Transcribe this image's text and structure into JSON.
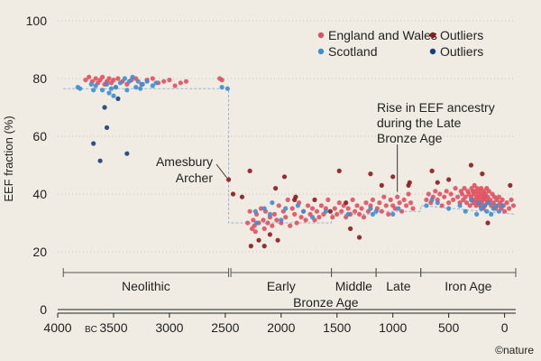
{
  "chart_data": {
    "type": "scatter",
    "ylabel": "EEF fraction (%)",
    "yticks": [
      0,
      20,
      40,
      60,
      80,
      100
    ],
    "ylim": [
      0,
      100
    ],
    "xlim": [
      4000,
      -100
    ],
    "xtick_values": [
      4000,
      3500,
      3000,
      2500,
      2000,
      1500,
      1000,
      500,
      0
    ],
    "xtick_labels": [
      "4000",
      "3500",
      "3000",
      "2500",
      "2000",
      "1500",
      "1000",
      "500",
      "0"
    ],
    "x_unit_label": "BC",
    "legend": [
      {
        "label": "England and Wales",
        "color": "#e0505f"
      },
      {
        "label": "Outliers",
        "color": "#8b1a1a"
      },
      {
        "label": "Scotland",
        "color": "#3b8fd0"
      },
      {
        "label": "Outliers",
        "color": "#1a3f7a"
      }
    ],
    "legend_position": "top-right",
    "annotations": [
      {
        "id": "amesbury",
        "lines": [
          "Amesbury",
          "Archer"
        ],
        "point_x": 2470,
        "point_y": 45
      },
      {
        "id": "rise",
        "lines": [
          "Rise in EEF ancestry",
          "during the Late",
          "Bronze Age"
        ],
        "point_x": 960,
        "point_y": 39.5
      }
    ],
    "periods": [
      {
        "label": "Neolithic",
        "from": 3950,
        "to": 2470
      },
      {
        "label": "Early",
        "from": 2450,
        "to": 1550
      },
      {
        "label": "Middle",
        "from": 1550,
        "to": 1150
      },
      {
        "label": "Late",
        "from": 1150,
        "to": 750
      },
      {
        "label": "Iron Age",
        "from": 750,
        "to": -100
      }
    ],
    "period_group_label": "Bronze Age",
    "step_line": [
      [
        3950,
        76.5
      ],
      [
        2470,
        76.5
      ],
      [
        2470,
        30
      ],
      [
        1550,
        30
      ],
      [
        1550,
        33
      ],
      [
        1150,
        33
      ],
      [
        1150,
        34
      ],
      [
        750,
        34
      ],
      [
        750,
        36
      ],
      [
        -100,
        33
      ]
    ],
    "series": [
      {
        "name": "England and Wales",
        "color": "#e0505f",
        "points": [
          [
            3750,
            79.5
          ],
          [
            3720,
            80.5
          ],
          [
            3690,
            79
          ],
          [
            3660,
            80
          ],
          [
            3640,
            78.5
          ],
          [
            3620,
            79.5
          ],
          [
            3600,
            80.5
          ],
          [
            3580,
            78
          ],
          [
            3560,
            79
          ],
          [
            3540,
            80
          ],
          [
            3520,
            78.5
          ],
          [
            3500,
            79.5
          ],
          [
            3480,
            77
          ],
          [
            3460,
            80
          ],
          [
            3420,
            79
          ],
          [
            3380,
            78
          ],
          [
            3340,
            79.5
          ],
          [
            3300,
            80
          ],
          [
            3250,
            78
          ],
          [
            3200,
            79.5
          ],
          [
            3150,
            80
          ],
          [
            3100,
            78.5
          ],
          [
            3050,
            79
          ],
          [
            3000,
            79.5
          ],
          [
            2950,
            77.5
          ],
          [
            2900,
            78.5
          ],
          [
            2850,
            79
          ],
          [
            2550,
            80
          ],
          [
            2530,
            79.5
          ],
          [
            2300,
            30
          ],
          [
            2280,
            34
          ],
          [
            2260,
            28
          ],
          [
            2250,
            31
          ],
          [
            2240,
            29
          ],
          [
            2230,
            27
          ],
          [
            2220,
            33
          ],
          [
            2200,
            30
          ],
          [
            2180,
            35
          ],
          [
            2160,
            31
          ],
          [
            2150,
            28
          ],
          [
            2140,
            34
          ],
          [
            2120,
            30
          ],
          [
            2100,
            32
          ],
          [
            2080,
            29
          ],
          [
            2060,
            33
          ],
          [
            2040,
            31
          ],
          [
            2020,
            36
          ],
          [
            2000,
            30
          ],
          [
            1980,
            34
          ],
          [
            1960,
            32
          ],
          [
            1940,
            38
          ],
          [
            1920,
            29
          ],
          [
            1900,
            35
          ],
          [
            1880,
            33
          ],
          [
            1860,
            30
          ],
          [
            1840,
            37
          ],
          [
            1820,
            32
          ],
          [
            1800,
            34
          ],
          [
            1780,
            31
          ],
          [
            1760,
            36
          ],
          [
            1740,
            33
          ],
          [
            1720,
            35
          ],
          [
            1700,
            31
          ],
          [
            1680,
            34
          ],
          [
            1660,
            32
          ],
          [
            1640,
            36
          ],
          [
            1620,
            33
          ],
          [
            1600,
            35
          ],
          [
            1580,
            38
          ],
          [
            1540,
            32
          ],
          [
            1520,
            35
          ],
          [
            1500,
            33
          ],
          [
            1480,
            37
          ],
          [
            1460,
            34
          ],
          [
            1440,
            36
          ],
          [
            1420,
            32
          ],
          [
            1400,
            35
          ],
          [
            1380,
            33
          ],
          [
            1360,
            38
          ],
          [
            1340,
            34
          ],
          [
            1320,
            36
          ],
          [
            1300,
            33
          ],
          [
            1280,
            35
          ],
          [
            1260,
            32
          ],
          [
            1240,
            37
          ],
          [
            1220,
            34
          ],
          [
            1200,
            36
          ],
          [
            1180,
            38
          ],
          [
            1140,
            35
          ],
          [
            1120,
            37
          ],
          [
            1100,
            34
          ],
          [
            1080,
            39
          ],
          [
            1060,
            36
          ],
          [
            1040,
            33
          ],
          [
            1020,
            38
          ],
          [
            1000,
            36
          ],
          [
            980,
            35
          ],
          [
            960,
            39
          ],
          [
            940,
            37
          ],
          [
            920,
            34
          ],
          [
            900,
            38
          ],
          [
            880,
            36
          ],
          [
            860,
            40
          ],
          [
            840,
            37
          ],
          [
            820,
            35
          ],
          [
            700,
            38
          ],
          [
            680,
            40
          ],
          [
            660,
            37
          ],
          [
            640,
            39
          ],
          [
            620,
            41
          ],
          [
            600,
            38
          ],
          [
            580,
            40
          ],
          [
            560,
            36
          ],
          [
            540,
            39
          ],
          [
            520,
            41
          ],
          [
            500,
            37
          ],
          [
            480,
            40
          ],
          [
            460,
            38
          ],
          [
            440,
            42
          ],
          [
            420,
            39
          ],
          [
            400,
            37
          ],
          [
            390,
            41
          ],
          [
            380,
            40
          ],
          [
            370,
            38
          ],
          [
            360,
            42
          ],
          [
            350,
            39
          ],
          [
            340,
            37
          ],
          [
            330,
            41
          ],
          [
            320,
            40
          ],
          [
            310,
            36
          ],
          [
            300,
            39
          ],
          [
            295,
            42
          ],
          [
            290,
            38
          ],
          [
            285,
            41
          ],
          [
            280,
            37
          ],
          [
            275,
            40
          ],
          [
            270,
            43
          ],
          [
            265,
            38
          ],
          [
            260,
            41
          ],
          [
            255,
            36
          ],
          [
            250,
            39
          ],
          [
            245,
            42
          ],
          [
            240,
            37
          ],
          [
            235,
            40
          ],
          [
            230,
            38
          ],
          [
            225,
            41
          ],
          [
            220,
            36
          ],
          [
            215,
            39
          ],
          [
            210,
            42
          ],
          [
            205,
            37
          ],
          [
            200,
            40
          ],
          [
            195,
            38
          ],
          [
            190,
            35
          ],
          [
            185,
            41
          ],
          [
            180,
            39
          ],
          [
            175,
            36
          ],
          [
            170,
            40
          ],
          [
            165,
            38
          ],
          [
            160,
            42
          ],
          [
            155,
            37
          ],
          [
            150,
            39
          ],
          [
            140,
            41
          ],
          [
            130,
            38
          ],
          [
            120,
            36
          ],
          [
            110,
            40
          ],
          [
            100,
            37
          ],
          [
            90,
            39
          ],
          [
            80,
            35
          ],
          [
            70,
            38
          ],
          [
            60,
            36
          ],
          [
            50,
            39
          ],
          [
            40,
            37
          ],
          [
            30,
            35
          ],
          [
            20,
            38
          ],
          [
            10,
            36
          ],
          [
            0,
            34
          ],
          [
            -20,
            37
          ],
          [
            -40,
            35
          ],
          [
            -60,
            38
          ],
          [
            -80,
            36
          ]
        ]
      },
      {
        "name": "Outliers",
        "color": "#8b1a1a",
        "points": [
          [
            2470,
            45
          ],
          [
            2430,
            40
          ],
          [
            2350,
            39
          ],
          [
            2280,
            48
          ],
          [
            2270,
            22
          ],
          [
            2200,
            24
          ],
          [
            2150,
            22
          ],
          [
            2100,
            26
          ],
          [
            2050,
            42
          ],
          [
            2030,
            24
          ],
          [
            1970,
            46
          ],
          [
            1880,
            38
          ],
          [
            1870,
            39
          ],
          [
            1700,
            38
          ],
          [
            1560,
            34
          ],
          [
            1480,
            48
          ],
          [
            1420,
            37
          ],
          [
            1380,
            28
          ],
          [
            1300,
            25
          ],
          [
            1200,
            47
          ],
          [
            1100,
            43
          ],
          [
            1000,
            46
          ],
          [
            860,
            43
          ],
          [
            850,
            44
          ],
          [
            650,
            48
          ],
          [
            600,
            44
          ],
          [
            500,
            45
          ],
          [
            300,
            50
          ],
          [
            200,
            47
          ],
          [
            150,
            30
          ],
          [
            -50,
            43
          ]
        ]
      },
      {
        "name": "Scotland",
        "color": "#3b8fd0",
        "points": [
          [
            3820,
            77
          ],
          [
            3800,
            76.5
          ],
          [
            3700,
            78
          ],
          [
            3680,
            76
          ],
          [
            3660,
            77.5
          ],
          [
            3600,
            76
          ],
          [
            3560,
            78
          ],
          [
            3540,
            75
          ],
          [
            3520,
            76.5
          ],
          [
            3500,
            74
          ],
          [
            3480,
            77
          ],
          [
            3440,
            78.5
          ],
          [
            3400,
            80
          ],
          [
            3380,
            76
          ],
          [
            3360,
            79
          ],
          [
            3330,
            80.5
          ],
          [
            3300,
            77
          ],
          [
            3280,
            79
          ],
          [
            3260,
            76.5
          ],
          [
            3240,
            78
          ],
          [
            3200,
            79
          ],
          [
            3150,
            77.5
          ],
          [
            3120,
            78.5
          ],
          [
            2530,
            77
          ],
          [
            2480,
            76.5
          ],
          [
            2230,
            34
          ],
          [
            2220,
            30
          ],
          [
            2150,
            35
          ],
          [
            2100,
            33
          ],
          [
            2080,
            37
          ],
          [
            2000,
            31
          ],
          [
            1960,
            35
          ],
          [
            1850,
            36
          ],
          [
            1800,
            34
          ],
          [
            1720,
            32
          ],
          [
            1600,
            34
          ],
          [
            1400,
            33
          ],
          [
            1200,
            35
          ],
          [
            1180,
            33
          ],
          [
            1150,
            34
          ],
          [
            1000,
            33
          ],
          [
            950,
            35
          ],
          [
            700,
            36
          ],
          [
            650,
            38
          ],
          [
            600,
            37
          ],
          [
            500,
            35
          ],
          [
            400,
            36
          ],
          [
            350,
            34
          ],
          [
            300,
            38
          ],
          [
            250,
            33
          ],
          [
            230,
            37
          ],
          [
            210,
            35
          ],
          [
            180,
            36
          ],
          [
            160,
            34
          ],
          [
            140,
            37
          ],
          [
            120,
            33
          ],
          [
            100,
            35
          ],
          [
            80,
            36
          ],
          [
            50,
            34
          ],
          [
            20,
            36
          ]
        ]
      },
      {
        "name": "Outliers",
        "color": "#1a3f7a",
        "points": [
          [
            3580,
            70
          ],
          [
            3560,
            63
          ],
          [
            3460,
            73
          ],
          [
            3380,
            54
          ],
          [
            3680,
            57.5
          ],
          [
            3620,
            51.5
          ]
        ]
      }
    ]
  },
  "credit": "©nature"
}
